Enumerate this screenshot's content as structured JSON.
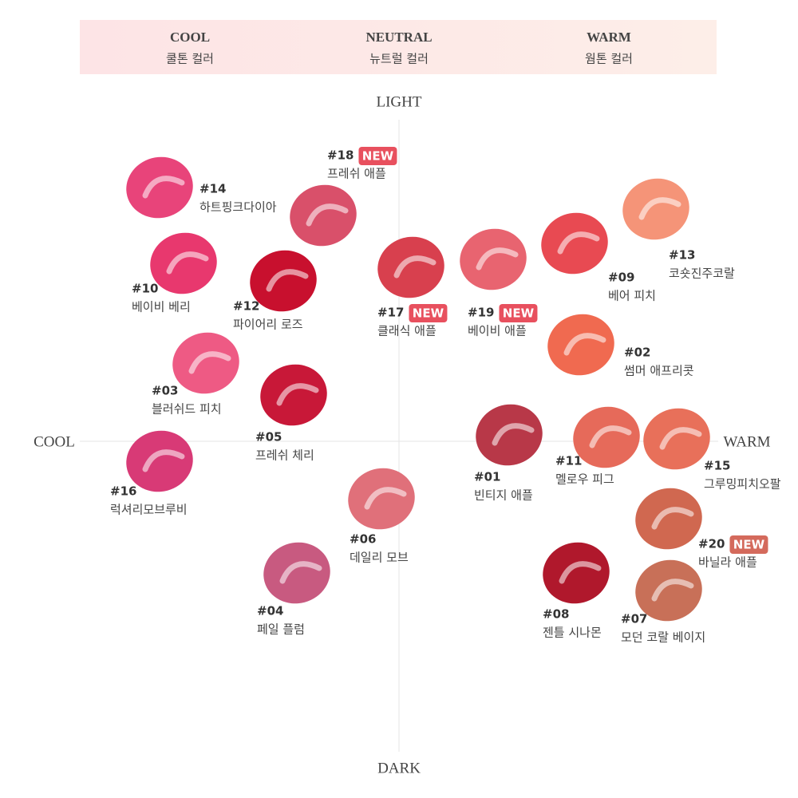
{
  "header": {
    "columns": [
      {
        "title": "COOL",
        "subtitle": "쿨톤 컬러"
      },
      {
        "title": "NEUTRAL",
        "subtitle": "뉴트럴 컬러"
      },
      {
        "title": "WARM",
        "subtitle": "웜톤 컬러"
      }
    ]
  },
  "axes": {
    "top": "LIGHT",
    "bottom": "DARK",
    "left": "COOL",
    "right": "WARM"
  },
  "swatches": [
    {
      "number": "#14",
      "name": "하트핑크다이아",
      "color": "#e8447a"
    },
    {
      "number": "#18",
      "badge": "NEW",
      "name": "프레쉬 애플",
      "color": "#d9506a"
    },
    {
      "number": "#10",
      "name": "베이비 베리",
      "color": "#e8386e"
    },
    {
      "number": "#12",
      "name": "파이어리 로즈",
      "color": "#c8102e"
    },
    {
      "number": "#17",
      "badge": "NEW",
      "name": "클래식 애플",
      "color": "#d8404e"
    },
    {
      "number": "#19",
      "badge": "NEW",
      "name": "베이비 애플",
      "color": "#e86470"
    },
    {
      "number": "#09",
      "name": "베어 피치",
      "color": "#e84a52"
    },
    {
      "number": "#13",
      "name": "코숏진주코랄",
      "color": "#f59478"
    },
    {
      "number": "#02",
      "name": "썸머 애프리콧",
      "color": "#f06a50"
    },
    {
      "number": "#03",
      "name": "블러쉬드 피치",
      "color": "#ee5a84"
    },
    {
      "number": "#05",
      "name": "프레쉬 체리",
      "color": "#c81838"
    },
    {
      "number": "#01",
      "name": "빈티지 애플",
      "color": "#b83848"
    },
    {
      "number": "#11",
      "name": "멜로우 피그",
      "color": "#e66a5a"
    },
    {
      "number": "#15",
      "name": "그루밍피치오팔",
      "color": "#e8705a"
    },
    {
      "number": "#16",
      "name": "럭셔리모브루비",
      "color": "#d83a76"
    },
    {
      "number": "#06",
      "name": "데일리 모브",
      "color": "#e0707a"
    },
    {
      "number": "#20",
      "badge": "NEW",
      "name": "바닐라 애플",
      "color": "#d06850"
    },
    {
      "number": "#04",
      "name": "페일 플럼",
      "color": "#c85a80"
    },
    {
      "number": "#08",
      "name": "젠틀 시나몬",
      "color": "#b0182c"
    },
    {
      "number": "#07",
      "name": "모던 코랄 베이지",
      "color": "#c87058"
    }
  ]
}
